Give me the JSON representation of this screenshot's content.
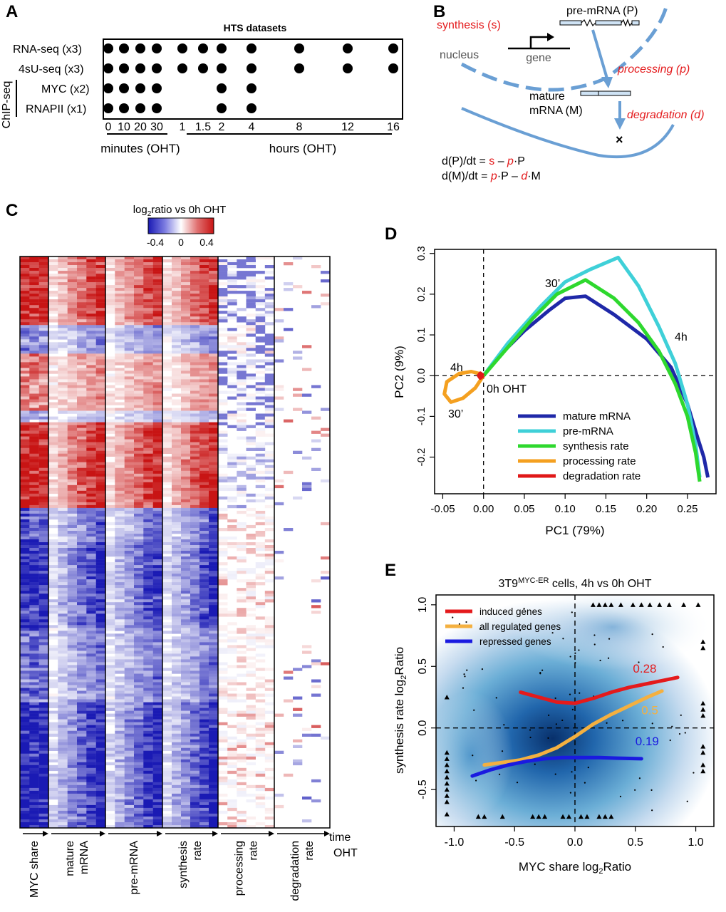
{
  "panel_labels": {
    "a": "A",
    "b": "B",
    "c": "C",
    "d": "D",
    "e": "E"
  },
  "colors": {
    "red": "#e41a1c",
    "blue_line": "#6a9fd4",
    "heat_red": "#c81414",
    "heat_blue": "#1a1ab4",
    "mature": "#1f28a8",
    "pre": "#3fd0d8",
    "synthesis": "#2ed82e",
    "processing": "#f4a020",
    "degradation": "#e01818",
    "induced": "#e41a1c",
    "all_regulated": "#f4b040",
    "repressed": "#1a1ae0",
    "density": "#08306b"
  },
  "panel_a": {
    "title": "HTS datasets",
    "rows": [
      "RNA-seq (x3)",
      "4sU-seq (x3)",
      "MYC (x2)",
      "RNAPII (x1)"
    ],
    "group_label": "ChIP-seq",
    "timepoints": [
      "0",
      "10",
      "20",
      "30",
      "1",
      "1.5",
      "2",
      "4",
      "8",
      "12",
      "16"
    ],
    "presence": [
      [
        1,
        1,
        1,
        1,
        1,
        1,
        1,
        1,
        1,
        1,
        1
      ],
      [
        1,
        1,
        1,
        1,
        1,
        1,
        1,
        1,
        1,
        1,
        1
      ],
      [
        1,
        1,
        1,
        1,
        0,
        0,
        1,
        1,
        0,
        0,
        0
      ],
      [
        1,
        1,
        1,
        1,
        0,
        0,
        1,
        1,
        0,
        0,
        0
      ]
    ],
    "unit_minutes": "minutes (OHT)",
    "unit_hours": "hours (OHT)"
  },
  "panel_b": {
    "synthesis": "synthesis (s)",
    "pre_mrna": "pre-mRNA (P)",
    "nucleus": "nucleus",
    "gene": "gene",
    "processing": "processing (p)",
    "mature1": "mature",
    "mature2": "mRNA (M)",
    "degradation": "degradation (d)",
    "eq1": {
      "lhs": "d(P)/dt = ",
      "s": "s",
      "mid": " – ",
      "p": "p",
      "rest": "·P"
    },
    "eq2": {
      "lhs": "d(M)/dt = ",
      "p": "p",
      "mid": "·P – ",
      "d": "d",
      "rest": "·M"
    }
  },
  "panel_c": {
    "colorbar_title_main": "log",
    "colorbar_title_sub": "2",
    "colorbar_title_rest": "ratio vs 0h OHT",
    "colorbar_ticks": [
      "-0.4",
      "0",
      "0.4"
    ],
    "column_labels": [
      [
        "MYC share"
      ],
      [
        "mature",
        "mRNA"
      ],
      [
        "pre-mRNA"
      ],
      [
        "synthesis",
        "rate"
      ],
      [
        "processing",
        "rate"
      ],
      [
        "degradation",
        "rate"
      ]
    ],
    "time_label": [
      "time",
      "OHT"
    ]
  },
  "chart_data": [
    {
      "type": "line",
      "title": "",
      "xlabel": "PC1 (79%)",
      "ylabel": "PC2 (9%)",
      "xlim": [
        -0.06,
        0.285
      ],
      "ylim": [
        -0.29,
        0.31
      ],
      "xticks": [
        "-0.05",
        "0.00",
        "0.05",
        "0.10",
        "0.15",
        "0.20",
        "0.25"
      ],
      "yticks": [
        "-0.2",
        "-0.1",
        "0.0",
        "0.1",
        "0.2",
        "0.3"
      ],
      "xtick_values": [
        -0.05,
        0,
        0.05,
        0.1,
        0.15,
        0.2,
        0.25
      ],
      "ytick_values": [
        -0.2,
        -0.1,
        0,
        0.1,
        0.2,
        0.3
      ],
      "annotations": {
        "t30_top": "30’",
        "t4h_right": "4h",
        "t4h_left": "4h",
        "origin": "0h OHT",
        "t30_bottom": "30’"
      },
      "series": [
        {
          "name": "mature mRNA",
          "x": [
            0,
            0.02,
            0.05,
            0.08,
            0.1,
            0.125,
            0.16,
            0.2,
            0.23,
            0.25,
            0.262,
            0.27,
            0.275
          ],
          "y": [
            0,
            0.05,
            0.11,
            0.16,
            0.19,
            0.195,
            0.15,
            0.09,
            0.02,
            -0.07,
            -0.15,
            -0.2,
            -0.25
          ]
        },
        {
          "name": "pre-mRNA",
          "x": [
            0,
            0.03,
            0.07,
            0.1,
            0.13,
            0.165,
            0.19,
            0.215,
            0.235,
            0.25,
            0.26,
            0.265
          ],
          "y": [
            0,
            0.08,
            0.17,
            0.23,
            0.26,
            0.29,
            0.22,
            0.12,
            0.03,
            -0.07,
            -0.17,
            -0.25
          ]
        },
        {
          "name": "synthesis rate",
          "x": [
            0,
            0.03,
            0.06,
            0.09,
            0.125,
            0.16,
            0.19,
            0.215,
            0.235,
            0.25,
            0.26,
            0.265
          ],
          "y": [
            0,
            0.07,
            0.14,
            0.2,
            0.235,
            0.19,
            0.13,
            0.06,
            -0.02,
            -0.1,
            -0.19,
            -0.26
          ]
        },
        {
          "name": "processing rate",
          "x": [
            0,
            -0.01,
            -0.025,
            -0.04,
            -0.048,
            -0.045,
            -0.03,
            -0.015,
            -0.005,
            0
          ],
          "y": [
            0,
            -0.03,
            -0.055,
            -0.065,
            -0.045,
            -0.015,
            0.005,
            0.01,
            0.005,
            0
          ]
        },
        {
          "name": "degradation rate",
          "x": [
            0,
            -0.004,
            -0.006,
            -0.004,
            0
          ],
          "y": [
            0,
            -0.006,
            0,
            0.006,
            0
          ]
        }
      ]
    },
    {
      "type": "scatter",
      "title_main": "3T9",
      "title_sup": "MYC-ER",
      "title_rest": " cells, 4h vs 0h OHT",
      "xlabel": "MYC share log",
      "xlabel_sub": "2",
      "xlabel_rest": "Ratio",
      "ylabel": "synthesis rate log",
      "ylabel_sub": "2",
      "ylabel_rest": "Ratio",
      "xlim": [
        -1.15,
        1.15
      ],
      "ylim": [
        -0.8,
        1.08
      ],
      "xticks": [
        "-1.0",
        "-0.5",
        "0.0",
        "0.5",
        "1.0"
      ],
      "yticks": [
        "-0.5",
        "0.0",
        "0.5",
        "1.0"
      ],
      "xtick_values": [
        -1,
        -0.5,
        0,
        0.5,
        1
      ],
      "ytick_values": [
        -0.5,
        0,
        0.5,
        1
      ],
      "series": [
        {
          "name": "induced genes",
          "x": [
            -0.45,
            -0.3,
            -0.15,
            0,
            0.15,
            0.3,
            0.45,
            0.6,
            0.75,
            0.85
          ],
          "y": [
            0.29,
            0.25,
            0.21,
            0.2,
            0.24,
            0.29,
            0.33,
            0.36,
            0.39,
            0.41
          ],
          "label": "0.28"
        },
        {
          "name": "all regulated genes",
          "x": [
            -0.75,
            -0.6,
            -0.45,
            -0.3,
            -0.15,
            0,
            0.15,
            0.3,
            0.45,
            0.6,
            0.72
          ],
          "y": [
            -0.3,
            -0.28,
            -0.26,
            -0.22,
            -0.16,
            -0.07,
            0.03,
            0.11,
            0.18,
            0.25,
            0.3
          ],
          "label": "0.5"
        },
        {
          "name": "repressed genes",
          "x": [
            -0.85,
            -0.7,
            -0.55,
            -0.4,
            -0.25,
            -0.1,
            0.05,
            0.2,
            0.35,
            0.55
          ],
          "y": [
            -0.39,
            -0.34,
            -0.3,
            -0.27,
            -0.25,
            -0.24,
            -0.24,
            -0.24,
            -0.245,
            -0.25
          ],
          "label": "0.19"
        }
      ]
    }
  ]
}
